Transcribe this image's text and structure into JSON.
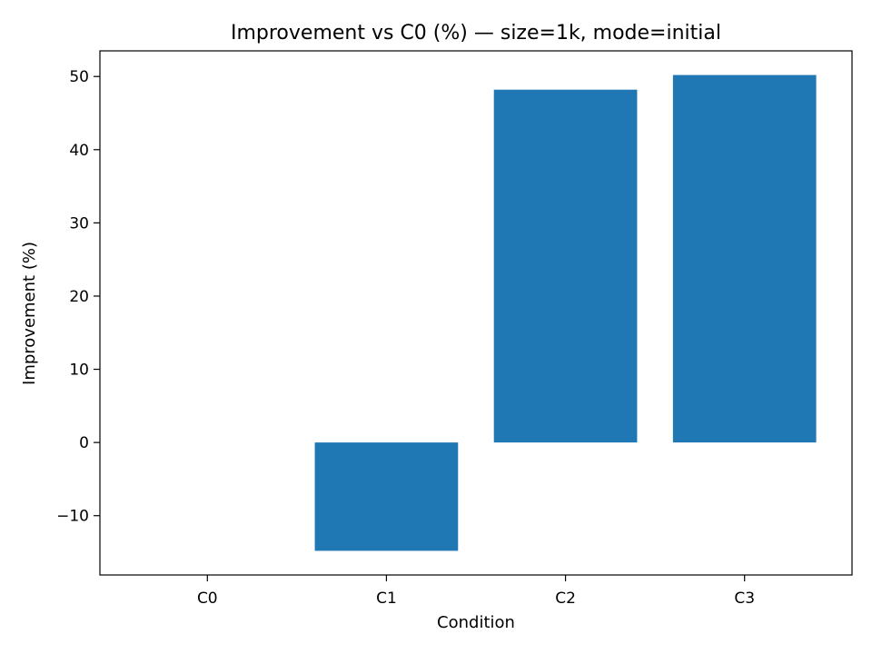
{
  "chart_data": {
    "type": "bar",
    "title": "Improvement vs C0 (%) — size=1k, mode=initial",
    "xlabel": "Condition",
    "ylabel": "Improvement (%)",
    "categories": [
      "C0",
      "C1",
      "C2",
      "C3"
    ],
    "values": [
      0,
      -14.8,
      48.2,
      50.2
    ],
    "ylim": [
      -18.1,
      53.5
    ],
    "yticks": [
      -10,
      0,
      10,
      20,
      30,
      40,
      50
    ],
    "ytick_labels": [
      "−10",
      "0",
      "10",
      "20",
      "30",
      "40",
      "50"
    ],
    "grid": false,
    "legend": "none",
    "bar_color": "#1f77b4"
  }
}
